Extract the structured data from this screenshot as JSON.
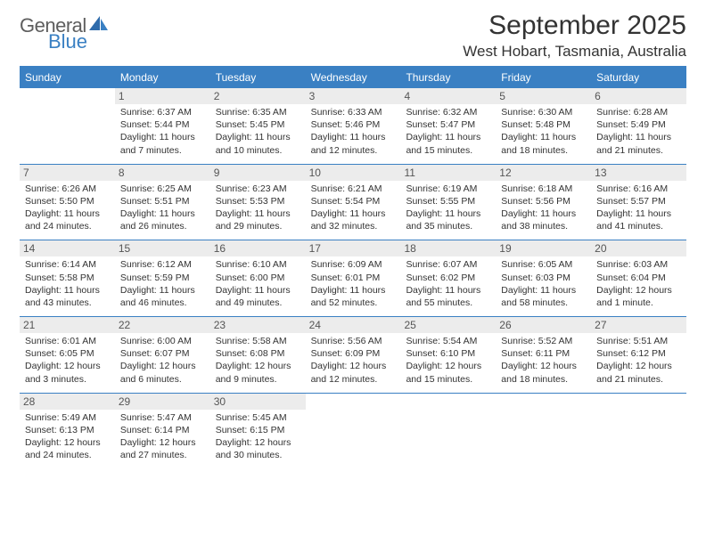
{
  "brand": {
    "line1": "General",
    "line2": "Blue"
  },
  "title": "September 2025",
  "location": "West Hobart, Tasmania, Australia",
  "colors": {
    "accent": "#3a80c3",
    "daynum_bg": "#ececec",
    "text": "#333333",
    "logo_gray": "#5e5e5e"
  },
  "day_names": [
    "Sunday",
    "Monday",
    "Tuesday",
    "Wednesday",
    "Thursday",
    "Friday",
    "Saturday"
  ],
  "weeks": [
    [
      {
        "blank": true
      },
      {
        "n": "1",
        "sunrise": "6:37 AM",
        "sunset": "5:44 PM",
        "dl_h": "11",
        "dl_m": "7"
      },
      {
        "n": "2",
        "sunrise": "6:35 AM",
        "sunset": "5:45 PM",
        "dl_h": "11",
        "dl_m": "10"
      },
      {
        "n": "3",
        "sunrise": "6:33 AM",
        "sunset": "5:46 PM",
        "dl_h": "11",
        "dl_m": "12"
      },
      {
        "n": "4",
        "sunrise": "6:32 AM",
        "sunset": "5:47 PM",
        "dl_h": "11",
        "dl_m": "15"
      },
      {
        "n": "5",
        "sunrise": "6:30 AM",
        "sunset": "5:48 PM",
        "dl_h": "11",
        "dl_m": "18"
      },
      {
        "n": "6",
        "sunrise": "6:28 AM",
        "sunset": "5:49 PM",
        "dl_h": "11",
        "dl_m": "21"
      }
    ],
    [
      {
        "n": "7",
        "sunrise": "6:26 AM",
        "sunset": "5:50 PM",
        "dl_h": "11",
        "dl_m": "24"
      },
      {
        "n": "8",
        "sunrise": "6:25 AM",
        "sunset": "5:51 PM",
        "dl_h": "11",
        "dl_m": "26"
      },
      {
        "n": "9",
        "sunrise": "6:23 AM",
        "sunset": "5:53 PM",
        "dl_h": "11",
        "dl_m": "29"
      },
      {
        "n": "10",
        "sunrise": "6:21 AM",
        "sunset": "5:54 PM",
        "dl_h": "11",
        "dl_m": "32"
      },
      {
        "n": "11",
        "sunrise": "6:19 AM",
        "sunset": "5:55 PM",
        "dl_h": "11",
        "dl_m": "35"
      },
      {
        "n": "12",
        "sunrise": "6:18 AM",
        "sunset": "5:56 PM",
        "dl_h": "11",
        "dl_m": "38"
      },
      {
        "n": "13",
        "sunrise": "6:16 AM",
        "sunset": "5:57 PM",
        "dl_h": "11",
        "dl_m": "41"
      }
    ],
    [
      {
        "n": "14",
        "sunrise": "6:14 AM",
        "sunset": "5:58 PM",
        "dl_h": "11",
        "dl_m": "43"
      },
      {
        "n": "15",
        "sunrise": "6:12 AM",
        "sunset": "5:59 PM",
        "dl_h": "11",
        "dl_m": "46"
      },
      {
        "n": "16",
        "sunrise": "6:10 AM",
        "sunset": "6:00 PM",
        "dl_h": "11",
        "dl_m": "49"
      },
      {
        "n": "17",
        "sunrise": "6:09 AM",
        "sunset": "6:01 PM",
        "dl_h": "11",
        "dl_m": "52"
      },
      {
        "n": "18",
        "sunrise": "6:07 AM",
        "sunset": "6:02 PM",
        "dl_h": "11",
        "dl_m": "55"
      },
      {
        "n": "19",
        "sunrise": "6:05 AM",
        "sunset": "6:03 PM",
        "dl_h": "11",
        "dl_m": "58"
      },
      {
        "n": "20",
        "sunrise": "6:03 AM",
        "sunset": "6:04 PM",
        "dl_h": "12",
        "dl_m": "1",
        "singular": true
      }
    ],
    [
      {
        "n": "21",
        "sunrise": "6:01 AM",
        "sunset": "6:05 PM",
        "dl_h": "12",
        "dl_m": "3"
      },
      {
        "n": "22",
        "sunrise": "6:00 AM",
        "sunset": "6:07 PM",
        "dl_h": "12",
        "dl_m": "6"
      },
      {
        "n": "23",
        "sunrise": "5:58 AM",
        "sunset": "6:08 PM",
        "dl_h": "12",
        "dl_m": "9"
      },
      {
        "n": "24",
        "sunrise": "5:56 AM",
        "sunset": "6:09 PM",
        "dl_h": "12",
        "dl_m": "12"
      },
      {
        "n": "25",
        "sunrise": "5:54 AM",
        "sunset": "6:10 PM",
        "dl_h": "12",
        "dl_m": "15"
      },
      {
        "n": "26",
        "sunrise": "5:52 AM",
        "sunset": "6:11 PM",
        "dl_h": "12",
        "dl_m": "18"
      },
      {
        "n": "27",
        "sunrise": "5:51 AM",
        "sunset": "6:12 PM",
        "dl_h": "12",
        "dl_m": "21"
      }
    ],
    [
      {
        "n": "28",
        "sunrise": "5:49 AM",
        "sunset": "6:13 PM",
        "dl_h": "12",
        "dl_m": "24"
      },
      {
        "n": "29",
        "sunrise": "5:47 AM",
        "sunset": "6:14 PM",
        "dl_h": "12",
        "dl_m": "27"
      },
      {
        "n": "30",
        "sunrise": "5:45 AM",
        "sunset": "6:15 PM",
        "dl_h": "12",
        "dl_m": "30"
      },
      {
        "blank": true
      },
      {
        "blank": true
      },
      {
        "blank": true
      },
      {
        "blank": true
      }
    ]
  ],
  "labels": {
    "sunrise_prefix": "Sunrise: ",
    "sunset_prefix": "Sunset: ",
    "daylight_prefix": "Daylight: ",
    "hours_word": " hours",
    "and_word": " and ",
    "minutes_word": " minutes.",
    "minute_word": " minute."
  }
}
